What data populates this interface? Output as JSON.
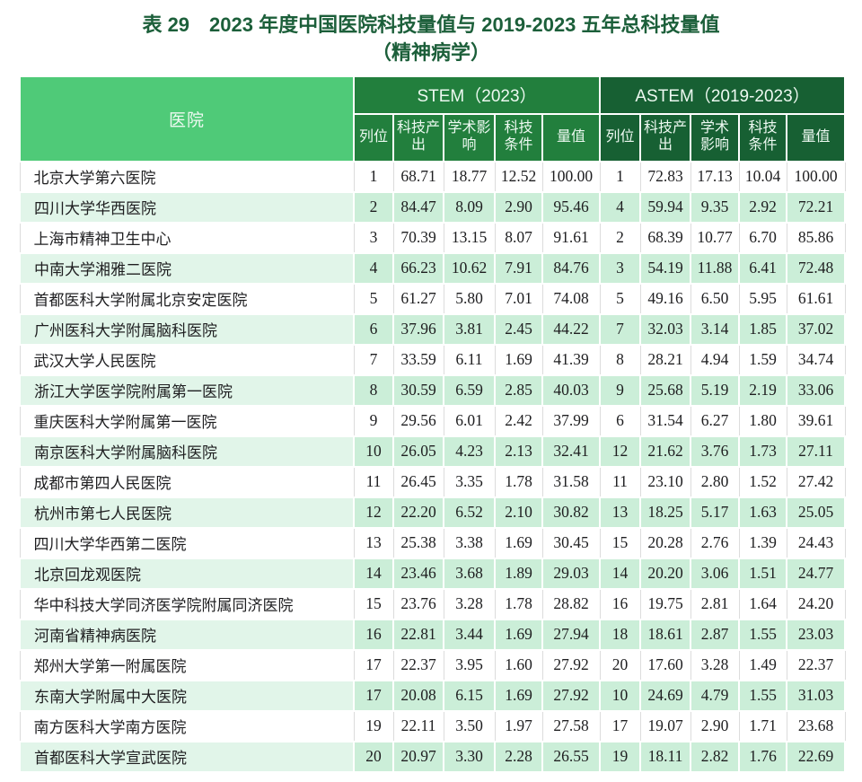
{
  "title": {
    "line1": "表 29　2023 年度中国医院科技量值与 2019-2023 五年总科技量值",
    "line2": "（精神病学）"
  },
  "table": {
    "hospital_header": "医院",
    "groups": [
      {
        "id": "stem",
        "label": "STEM（2023）"
      },
      {
        "id": "astem",
        "label": "ASTEM（2019-2023）"
      }
    ],
    "sub_headers": [
      "列位",
      "科技产出",
      "学术影响",
      "科技条件",
      "量值"
    ],
    "rows": [
      {
        "hospital": "北京大学第六医院",
        "stem": [
          "1",
          "68.71",
          "18.77",
          "12.52",
          "100.00"
        ],
        "astem": [
          "1",
          "72.83",
          "17.13",
          "10.04",
          "100.00"
        ]
      },
      {
        "hospital": "四川大学华西医院",
        "stem": [
          "2",
          "84.47",
          "8.09",
          "2.90",
          "95.46"
        ],
        "astem": [
          "4",
          "59.94",
          "9.35",
          "2.92",
          "72.21"
        ]
      },
      {
        "hospital": "上海市精神卫生中心",
        "stem": [
          "3",
          "70.39",
          "13.15",
          "8.07",
          "91.61"
        ],
        "astem": [
          "2",
          "68.39",
          "10.77",
          "6.70",
          "85.86"
        ]
      },
      {
        "hospital": "中南大学湘雅二医院",
        "stem": [
          "4",
          "66.23",
          "10.62",
          "7.91",
          "84.76"
        ],
        "astem": [
          "3",
          "54.19",
          "11.88",
          "6.41",
          "72.48"
        ]
      },
      {
        "hospital": "首都医科大学附属北京安定医院",
        "stem": [
          "5",
          "61.27",
          "5.80",
          "7.01",
          "74.08"
        ],
        "astem": [
          "5",
          "49.16",
          "6.50",
          "5.95",
          "61.61"
        ]
      },
      {
        "hospital": "广州医科大学附属脑科医院",
        "stem": [
          "6",
          "37.96",
          "3.81",
          "2.45",
          "44.22"
        ],
        "astem": [
          "7",
          "32.03",
          "3.14",
          "1.85",
          "37.02"
        ]
      },
      {
        "hospital": "武汉大学人民医院",
        "stem": [
          "7",
          "33.59",
          "6.11",
          "1.69",
          "41.39"
        ],
        "astem": [
          "8",
          "28.21",
          "4.94",
          "1.59",
          "34.74"
        ]
      },
      {
        "hospital": "浙江大学医学院附属第一医院",
        "stem": [
          "8",
          "30.59",
          "6.59",
          "2.85",
          "40.03"
        ],
        "astem": [
          "9",
          "25.68",
          "5.19",
          "2.19",
          "33.06"
        ]
      },
      {
        "hospital": "重庆医科大学附属第一医院",
        "stem": [
          "9",
          "29.56",
          "6.01",
          "2.42",
          "37.99"
        ],
        "astem": [
          "6",
          "31.54",
          "6.27",
          "1.80",
          "39.61"
        ]
      },
      {
        "hospital": "南京医科大学附属脑科医院",
        "stem": [
          "10",
          "26.05",
          "4.23",
          "2.13",
          "32.41"
        ],
        "astem": [
          "12",
          "21.62",
          "3.76",
          "1.73",
          "27.11"
        ]
      },
      {
        "hospital": "成都市第四人民医院",
        "stem": [
          "11",
          "26.45",
          "3.35",
          "1.78",
          "31.58"
        ],
        "astem": [
          "11",
          "23.10",
          "2.80",
          "1.52",
          "27.42"
        ]
      },
      {
        "hospital": "杭州市第七人民医院",
        "stem": [
          "12",
          "22.20",
          "6.52",
          "2.10",
          "30.82"
        ],
        "astem": [
          "13",
          "18.25",
          "5.17",
          "1.63",
          "25.05"
        ]
      },
      {
        "hospital": "四川大学华西第二医院",
        "stem": [
          "13",
          "25.38",
          "3.38",
          "1.69",
          "30.45"
        ],
        "astem": [
          "15",
          "20.28",
          "2.76",
          "1.39",
          "24.43"
        ]
      },
      {
        "hospital": "北京回龙观医院",
        "stem": [
          "14",
          "23.46",
          "3.68",
          "1.89",
          "29.03"
        ],
        "astem": [
          "14",
          "20.20",
          "3.06",
          "1.51",
          "24.77"
        ]
      },
      {
        "hospital": "华中科技大学同济医学院附属同济医院",
        "stem": [
          "15",
          "23.76",
          "3.28",
          "1.78",
          "28.82"
        ],
        "astem": [
          "16",
          "19.75",
          "2.81",
          "1.64",
          "24.20"
        ]
      },
      {
        "hospital": "河南省精神病医院",
        "stem": [
          "16",
          "22.81",
          "3.44",
          "1.69",
          "27.94"
        ],
        "astem": [
          "18",
          "18.61",
          "2.87",
          "1.55",
          "23.03"
        ]
      },
      {
        "hospital": "郑州大学第一附属医院",
        "stem": [
          "17",
          "22.37",
          "3.95",
          "1.60",
          "27.92"
        ],
        "astem": [
          "20",
          "17.60",
          "3.28",
          "1.49",
          "22.37"
        ]
      },
      {
        "hospital": "东南大学附属中大医院",
        "stem": [
          "17",
          "20.08",
          "6.15",
          "1.69",
          "27.92"
        ],
        "astem": [
          "10",
          "24.69",
          "4.79",
          "1.55",
          "31.03"
        ]
      },
      {
        "hospital": "南方医科大学南方医院",
        "stem": [
          "19",
          "22.11",
          "3.50",
          "1.97",
          "27.58"
        ],
        "astem": [
          "17",
          "19.07",
          "2.90",
          "1.71",
          "23.68"
        ]
      },
      {
        "hospital": "首都医科大学宣武医院",
        "stem": [
          "20",
          "20.97",
          "3.30",
          "2.28",
          "26.55"
        ],
        "astem": [
          "19",
          "18.11",
          "2.82",
          "1.76",
          "22.69"
        ]
      }
    ]
  },
  "colors": {
    "title_text": "#1c5f3a",
    "hospital_header_bg": "#4fca78",
    "stem_header_bg": "#227f3d",
    "astem_header_bg": "#176033",
    "stripe_numeric_bg": "#cbeed8",
    "stripe_hospital_bg": "#e1f5e9",
    "header_text": "#edf9f1",
    "body_text": "#1e1e20"
  }
}
